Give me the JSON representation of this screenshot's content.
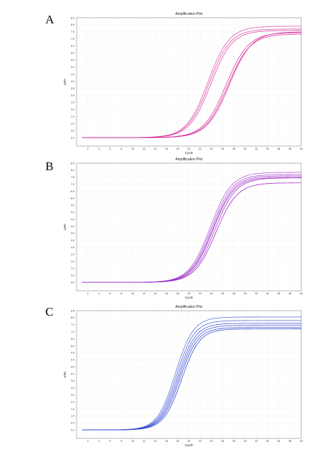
{
  "chart_data": [
    {
      "type": "line",
      "panel": "A",
      "title": "Amplification Plot",
      "xlabel": "Cycle",
      "ylabel": "ΔRn",
      "xlim": [
        0,
        40
      ],
      "ylim": [
        -0.6,
        8.5
      ],
      "xticks": [
        2,
        4,
        6,
        8,
        10,
        12,
        14,
        16,
        18,
        20,
        22,
        24,
        26,
        28,
        30,
        32,
        34,
        36,
        38,
        40
      ],
      "yticks": [
        "0.0",
        "0.5",
        "1.0",
        "1.5",
        "2.0",
        "2.5",
        "3.0",
        "3.5",
        "4.0",
        "4.5",
        "5.0",
        "5.5",
        "6.0",
        "6.5",
        "7.0",
        "7.5",
        "8.0",
        "8.5"
      ],
      "grid": true,
      "color": "#d6249a",
      "series": [
        {
          "plateau": 7.9,
          "midpoint": 23.4,
          "slope": 1.9
        },
        {
          "plateau": 7.7,
          "midpoint": 23.6,
          "slope": 1.9
        },
        {
          "plateau": 7.6,
          "midpoint": 23.9,
          "slope": 1.9
        },
        {
          "plateau": 7.45,
          "midpoint": 26.6,
          "slope": 2.0
        },
        {
          "plateau": 7.35,
          "midpoint": 26.9,
          "slope": 2.0
        },
        {
          "plateau": 7.5,
          "midpoint": 27.2,
          "slope": 2.0
        }
      ]
    },
    {
      "type": "line",
      "panel": "B",
      "title": "Amplification Plot",
      "xlabel": "Cycle",
      "ylabel": "ΔRn",
      "xlim": [
        0,
        40
      ],
      "ylim": [
        -0.6,
        8.5
      ],
      "xticks": [
        2,
        4,
        6,
        8,
        10,
        12,
        14,
        16,
        18,
        20,
        22,
        24,
        26,
        28,
        30,
        32,
        34,
        36,
        38,
        40
      ],
      "yticks": [
        "0.0",
        "0.5",
        "1.0",
        "1.5",
        "2.0",
        "2.5",
        "3.0",
        "3.5",
        "4.0",
        "4.5",
        "5.0",
        "5.5",
        "6.0",
        "6.5",
        "7.0",
        "7.5",
        "8.0",
        "8.5"
      ],
      "grid": true,
      "color": "#9a28c8",
      "series": [
        {
          "plateau": 7.85,
          "midpoint": 23.8,
          "slope": 1.9
        },
        {
          "plateau": 7.7,
          "midpoint": 24.0,
          "slope": 1.9
        },
        {
          "plateau": 7.6,
          "midpoint": 24.2,
          "slope": 1.9
        },
        {
          "plateau": 7.5,
          "midpoint": 24.3,
          "slope": 1.9
        },
        {
          "plateau": 7.45,
          "midpoint": 24.6,
          "slope": 1.9
        },
        {
          "plateau": 7.1,
          "midpoint": 24.8,
          "slope": 1.9
        }
      ]
    },
    {
      "type": "line",
      "panel": "C",
      "title": "Amplification Plot",
      "xlabel": "Cycle",
      "ylabel": "ΔRn",
      "xlim": [
        0,
        40
      ],
      "ylim": [
        -0.6,
        8.5
      ],
      "xticks": [
        2,
        4,
        6,
        8,
        10,
        12,
        14,
        16,
        18,
        20,
        22,
        24,
        26,
        28,
        30,
        32,
        34,
        36,
        38,
        40
      ],
      "yticks": [
        "0.0",
        "0.5",
        "1.0",
        "1.5",
        "2.0",
        "2.5",
        "3.0",
        "3.5",
        "4.0",
        "4.5",
        "5.0",
        "5.5",
        "6.0",
        "6.5",
        "7.0",
        "7.5",
        "8.0",
        "8.5"
      ],
      "grid": true,
      "color": "#2a3fd0",
      "series": [
        {
          "plateau": 8.05,
          "midpoint": 17.6,
          "slope": 1.6
        },
        {
          "plateau": 7.8,
          "midpoint": 17.8,
          "slope": 1.6
        },
        {
          "plateau": 7.6,
          "midpoint": 18.0,
          "slope": 1.6
        },
        {
          "plateau": 7.45,
          "midpoint": 18.2,
          "slope": 1.6
        },
        {
          "plateau": 7.3,
          "midpoint": 18.4,
          "slope": 1.6
        },
        {
          "plateau": 7.2,
          "midpoint": 18.7,
          "slope": 1.6
        }
      ]
    }
  ]
}
